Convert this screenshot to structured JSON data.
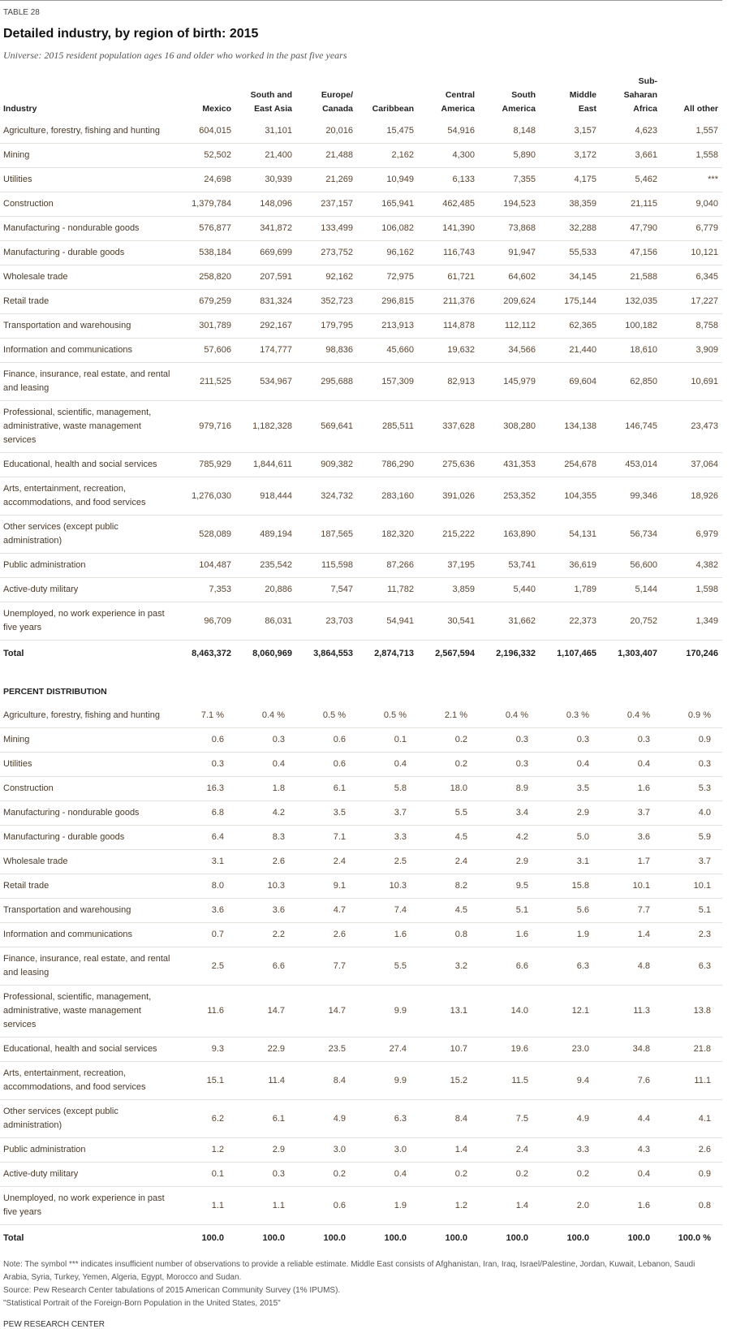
{
  "header": {
    "label": "TABLE 28",
    "title": "Detailed industry, by region of birth: 2015",
    "subtitle": "Universe: 2015 resident population ages 16 and older who worked in the past five years"
  },
  "columns": [
    [
      "Industry"
    ],
    [
      "Mexico"
    ],
    [
      "South and",
      "East Asia"
    ],
    [
      "Europe/",
      "Canada"
    ],
    [
      "Caribbean"
    ],
    [
      "Central",
      "America"
    ],
    [
      "South",
      "America"
    ],
    [
      "Middle",
      "East"
    ],
    [
      "Sub-",
      "Saharan",
      "Africa"
    ],
    [
      "All other"
    ]
  ],
  "counts": {
    "rows": [
      [
        "Agriculture, forestry, fishing and hunting",
        "604,015",
        "31,101",
        "20,016",
        "15,475",
        "54,916",
        "8,148",
        "3,157",
        "4,623",
        "1,557"
      ],
      [
        "Mining",
        "52,502",
        "21,400",
        "21,488",
        "2,162",
        "4,300",
        "5,890",
        "3,172",
        "3,661",
        "1,558"
      ],
      [
        "Utilities",
        "24,698",
        "30,939",
        "21,269",
        "10,949",
        "6,133",
        "7,355",
        "4,175",
        "5,462",
        "***"
      ],
      [
        "Construction",
        "1,379,784",
        "148,096",
        "237,157",
        "165,941",
        "462,485",
        "194,523",
        "38,359",
        "21,115",
        "9,040"
      ],
      [
        "Manufacturing - nondurable goods",
        "576,877",
        "341,872",
        "133,499",
        "106,082",
        "141,390",
        "73,868",
        "32,288",
        "47,790",
        "6,779"
      ],
      [
        "Manufacturing - durable goods",
        "538,184",
        "669,699",
        "273,752",
        "96,162",
        "116,743",
        "91,947",
        "55,533",
        "47,156",
        "10,121"
      ],
      [
        "Wholesale trade",
        "258,820",
        "207,591",
        "92,162",
        "72,975",
        "61,721",
        "64,602",
        "34,145",
        "21,588",
        "6,345"
      ],
      [
        "Retail trade",
        "679,259",
        "831,324",
        "352,723",
        "296,815",
        "211,376",
        "209,624",
        "175,144",
        "132,035",
        "17,227"
      ],
      [
        "Transportation and warehousing",
        "301,789",
        "292,167",
        "179,795",
        "213,913",
        "114,878",
        "112,112",
        "62,365",
        "100,182",
        "8,758"
      ],
      [
        "Information and communications",
        "57,606",
        "174,777",
        "98,836",
        "45,660",
        "19,632",
        "34,566",
        "21,440",
        "18,610",
        "3,909"
      ],
      [
        "Finance, insurance, real estate, and rental and leasing",
        "211,525",
        "534,967",
        "295,688",
        "157,309",
        "82,913",
        "145,979",
        "69,604",
        "62,850",
        "10,691"
      ],
      [
        "Professional, scientific, management, administrative, waste management services",
        "979,716",
        "1,182,328",
        "569,641",
        "285,511",
        "337,628",
        "308,280",
        "134,138",
        "146,745",
        "23,473"
      ],
      [
        "Educational, health and social services",
        "785,929",
        "1,844,611",
        "909,382",
        "786,290",
        "275,636",
        "431,353",
        "254,678",
        "453,014",
        "37,064"
      ],
      [
        "Arts, entertainment, recreation, accommodations, and food services",
        "1,276,030",
        "918,444",
        "324,732",
        "283,160",
        "391,026",
        "253,352",
        "104,355",
        "99,346",
        "18,926"
      ],
      [
        "Other services (except public administration)",
        "528,089",
        "489,194",
        "187,565",
        "182,320",
        "215,222",
        "163,890",
        "54,131",
        "56,734",
        "6,979"
      ],
      [
        "Public administration",
        "104,487",
        "235,542",
        "115,598",
        "87,266",
        "37,195",
        "53,741",
        "36,619",
        "56,600",
        "4,382"
      ],
      [
        "Active-duty military",
        "7,353",
        "20,886",
        "7,547",
        "11,782",
        "3,859",
        "5,440",
        "1,789",
        "5,144",
        "1,598"
      ],
      [
        "Unemployed, no work experience in past five years",
        "96,709",
        "86,031",
        "23,703",
        "54,941",
        "30,541",
        "31,662",
        "22,373",
        "20,752",
        "1,349"
      ]
    ],
    "total": [
      "Total",
      "8,463,372",
      "8,060,969",
      "3,864,553",
      "2,874,713",
      "2,567,594",
      "2,196,332",
      "1,107,465",
      "1,303,407",
      "170,246"
    ]
  },
  "percent": {
    "heading": "PERCENT DISTRIBUTION",
    "rows": [
      [
        "Agriculture, forestry, fishing and hunting",
        "7.1 %",
        "0.4 %",
        "0.5 %",
        "0.5 %",
        "2.1 %",
        "0.4 %",
        "0.3 %",
        "0.4 %",
        "0.9 %"
      ],
      [
        "Mining",
        "0.6",
        "0.3",
        "0.6",
        "0.1",
        "0.2",
        "0.3",
        "0.3",
        "0.3",
        "0.9"
      ],
      [
        "Utilities",
        "0.3",
        "0.4",
        "0.6",
        "0.4",
        "0.2",
        "0.3",
        "0.4",
        "0.4",
        "0.3"
      ],
      [
        "Construction",
        "16.3",
        "1.8",
        "6.1",
        "5.8",
        "18.0",
        "8.9",
        "3.5",
        "1.6",
        "5.3"
      ],
      [
        "Manufacturing - nondurable goods",
        "6.8",
        "4.2",
        "3.5",
        "3.7",
        "5.5",
        "3.4",
        "2.9",
        "3.7",
        "4.0"
      ],
      [
        "Manufacturing - durable goods",
        "6.4",
        "8.3",
        "7.1",
        "3.3",
        "4.5",
        "4.2",
        "5.0",
        "3.6",
        "5.9"
      ],
      [
        "Wholesale trade",
        "3.1",
        "2.6",
        "2.4",
        "2.5",
        "2.4",
        "2.9",
        "3.1",
        "1.7",
        "3.7"
      ],
      [
        "Retail trade",
        "8.0",
        "10.3",
        "9.1",
        "10.3",
        "8.2",
        "9.5",
        "15.8",
        "10.1",
        "10.1"
      ],
      [
        "Transportation and warehousing",
        "3.6",
        "3.6",
        "4.7",
        "7.4",
        "4.5",
        "5.1",
        "5.6",
        "7.7",
        "5.1"
      ],
      [
        "Information and communications",
        "0.7",
        "2.2",
        "2.6",
        "1.6",
        "0.8",
        "1.6",
        "1.9",
        "1.4",
        "2.3"
      ],
      [
        "Finance, insurance, real estate, and rental and leasing",
        "2.5",
        "6.6",
        "7.7",
        "5.5",
        "3.2",
        "6.6",
        "6.3",
        "4.8",
        "6.3"
      ],
      [
        "Professional, scientific, management, administrative, waste management services",
        "11.6",
        "14.7",
        "14.7",
        "9.9",
        "13.1",
        "14.0",
        "12.1",
        "11.3",
        "13.8"
      ],
      [
        "Educational, health and social services",
        "9.3",
        "22.9",
        "23.5",
        "27.4",
        "10.7",
        "19.6",
        "23.0",
        "34.8",
        "21.8"
      ],
      [
        "Arts, entertainment, recreation, accommodations, and food services",
        "15.1",
        "11.4",
        "8.4",
        "9.9",
        "15.2",
        "11.5",
        "9.4",
        "7.6",
        "11.1"
      ],
      [
        "Other services (except public administration)",
        "6.2",
        "6.1",
        "4.9",
        "6.3",
        "8.4",
        "7.5",
        "4.9",
        "4.4",
        "4.1"
      ],
      [
        "Public administration",
        "1.2",
        "2.9",
        "3.0",
        "3.0",
        "1.4",
        "2.4",
        "3.3",
        "4.3",
        "2.6"
      ],
      [
        "Active-duty military",
        "0.1",
        "0.3",
        "0.2",
        "0.4",
        "0.2",
        "0.2",
        "0.2",
        "0.4",
        "0.9"
      ],
      [
        "Unemployed, no work experience in past five years",
        "1.1",
        "1.1",
        "0.6",
        "1.9",
        "1.2",
        "1.4",
        "2.0",
        "1.6",
        "0.8"
      ]
    ],
    "total": [
      "Total",
      "100.0",
      "100.0",
      "100.0",
      "100.0",
      "100.0",
      "100.0",
      "100.0",
      "100.0",
      "100.0 %"
    ]
  },
  "notes": [
    "Note: The symbol *** indicates insufficient number of observations to provide a reliable estimate. Middle East consists of Afghanistan, Iran, Iraq, Israel/Palestine, Jordan, Kuwait, Lebanon, Saudi Arabia, Syria, Turkey, Yemen, Algeria, Egypt, Morocco and Sudan.",
    "Source: Pew Research Center tabulations of 2015 American Community Survey (1% IPUMS).",
    "\"Statistical Portrait of the Foreign-Born Population in the United States, 2015\""
  ],
  "footer": "PEW RESEARCH CENTER"
}
